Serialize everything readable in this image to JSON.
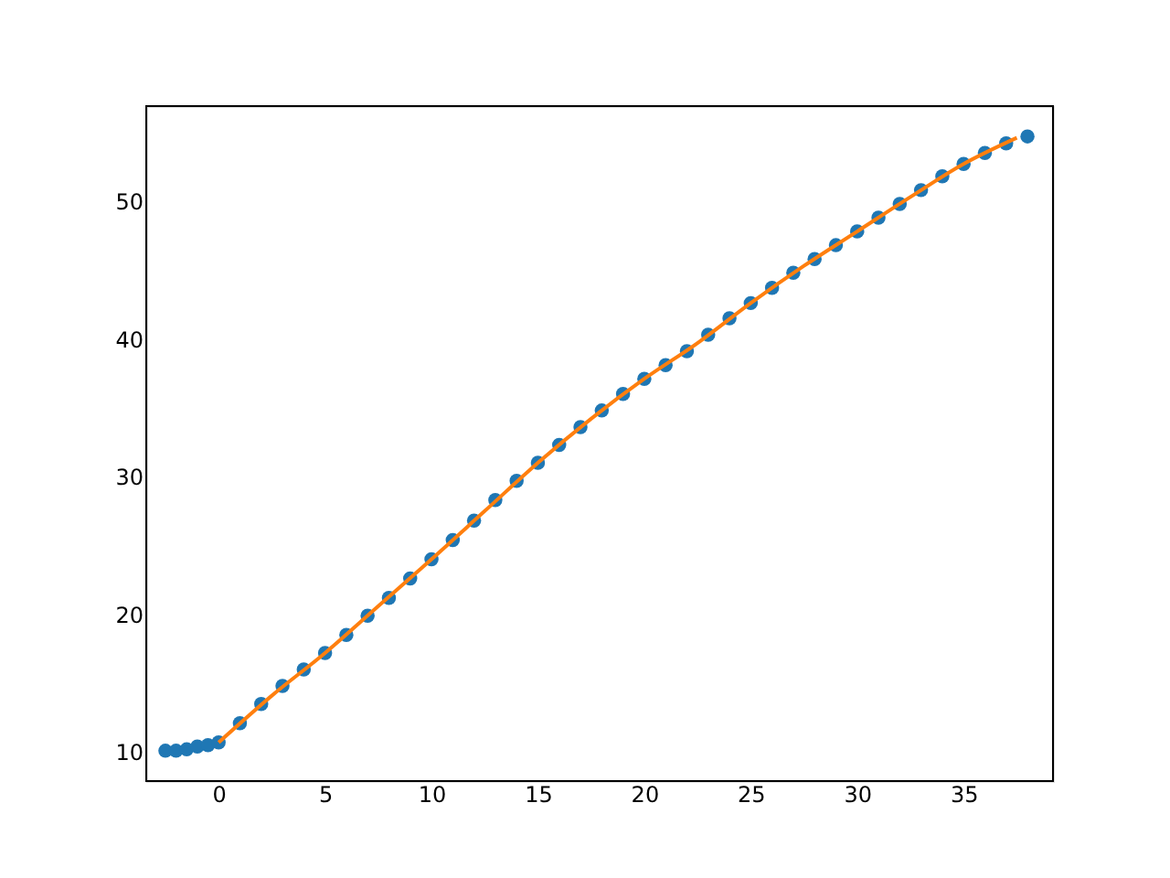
{
  "chart_data": {
    "type": "scatter",
    "xlim": [
      -3.4,
      39.2
    ],
    "ylim": [
      7.9,
      56.9
    ],
    "xticks": [
      0,
      5,
      10,
      15,
      20,
      25,
      30,
      35
    ],
    "yticks": [
      10,
      20,
      30,
      40,
      50
    ],
    "grid": false,
    "series": [
      {
        "marker": "circle",
        "color": "#1f77b4",
        "x": [
          -2.5,
          -2,
          -1.5,
          -1,
          -0.5,
          0,
          1,
          2,
          3,
          4,
          5,
          6,
          7,
          8,
          9,
          10,
          11,
          12,
          13,
          14,
          15,
          16,
          17,
          18,
          19,
          20,
          21,
          22,
          23,
          24,
          25,
          26,
          27,
          28,
          29,
          30,
          31,
          32,
          33,
          34,
          35,
          36,
          37,
          38
        ],
        "values": [
          10.1,
          10.1,
          10.2,
          10.4,
          10.5,
          10.7,
          12.1,
          13.5,
          14.8,
          16.0,
          17.2,
          18.5,
          19.9,
          21.2,
          22.6,
          24.0,
          25.4,
          26.8,
          28.3,
          29.7,
          31.0,
          32.3,
          33.6,
          34.8,
          36.0,
          37.1,
          38.1,
          39.1,
          40.3,
          41.5,
          42.6,
          43.7,
          44.8,
          45.8,
          46.8,
          47.8,
          48.8,
          49.8,
          50.8,
          51.8,
          52.7,
          53.5,
          54.2,
          54.7
        ]
      },
      {
        "type": "line",
        "marker": "none",
        "color": "#ff7f0e",
        "x": [
          0,
          2.5,
          5,
          7.5,
          10,
          12.5,
          15,
          17.5,
          20,
          22.5,
          25,
          27.5,
          30,
          32.5,
          35,
          37.5
        ],
        "values": [
          10.7,
          14.1,
          17.2,
          20.6,
          24.0,
          27.5,
          31.0,
          34.2,
          37.1,
          39.7,
          42.6,
          45.3,
          47.8,
          50.3,
          52.7,
          54.6
        ]
      }
    ]
  }
}
